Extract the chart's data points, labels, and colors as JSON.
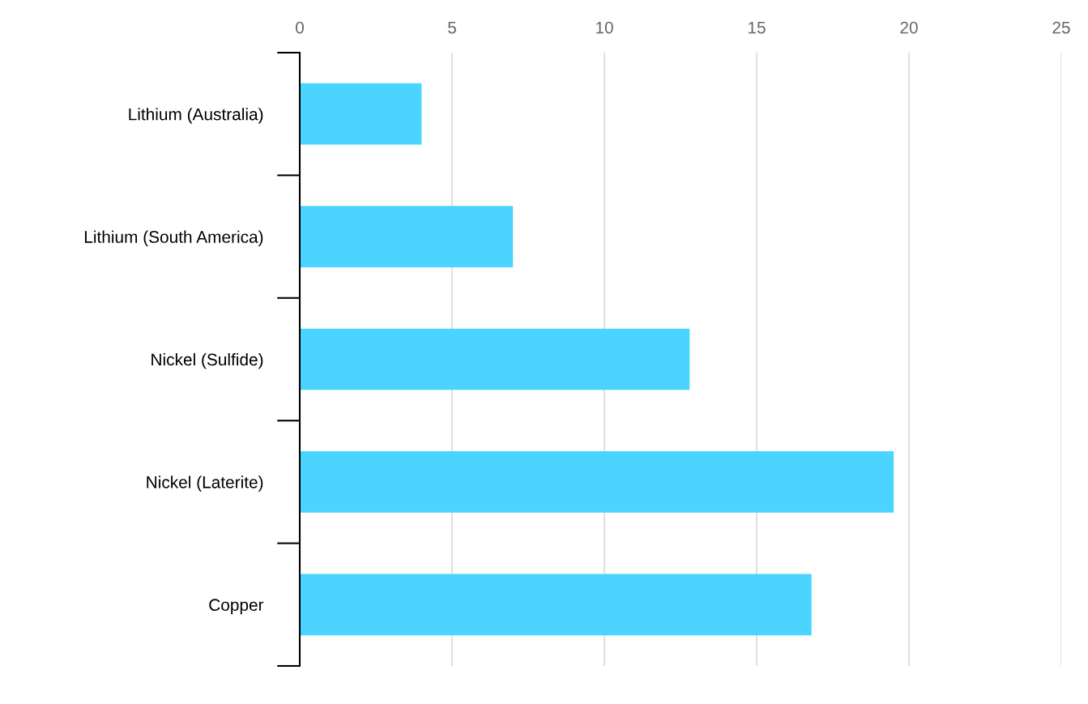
{
  "chart_data": {
    "type": "bar",
    "orientation": "horizontal",
    "categories": [
      "Lithium (Australia)",
      "Lithium (South America)",
      "Nickel (Sulfide)",
      "Nickel (Laterite)",
      "Copper"
    ],
    "values": [
      4.0,
      7.0,
      12.8,
      19.5,
      16.8
    ],
    "color": "#4ad4ff",
    "xlim": [
      0,
      25
    ],
    "xticks": [
      0,
      5,
      10,
      15,
      20,
      25
    ],
    "grid": "x"
  }
}
